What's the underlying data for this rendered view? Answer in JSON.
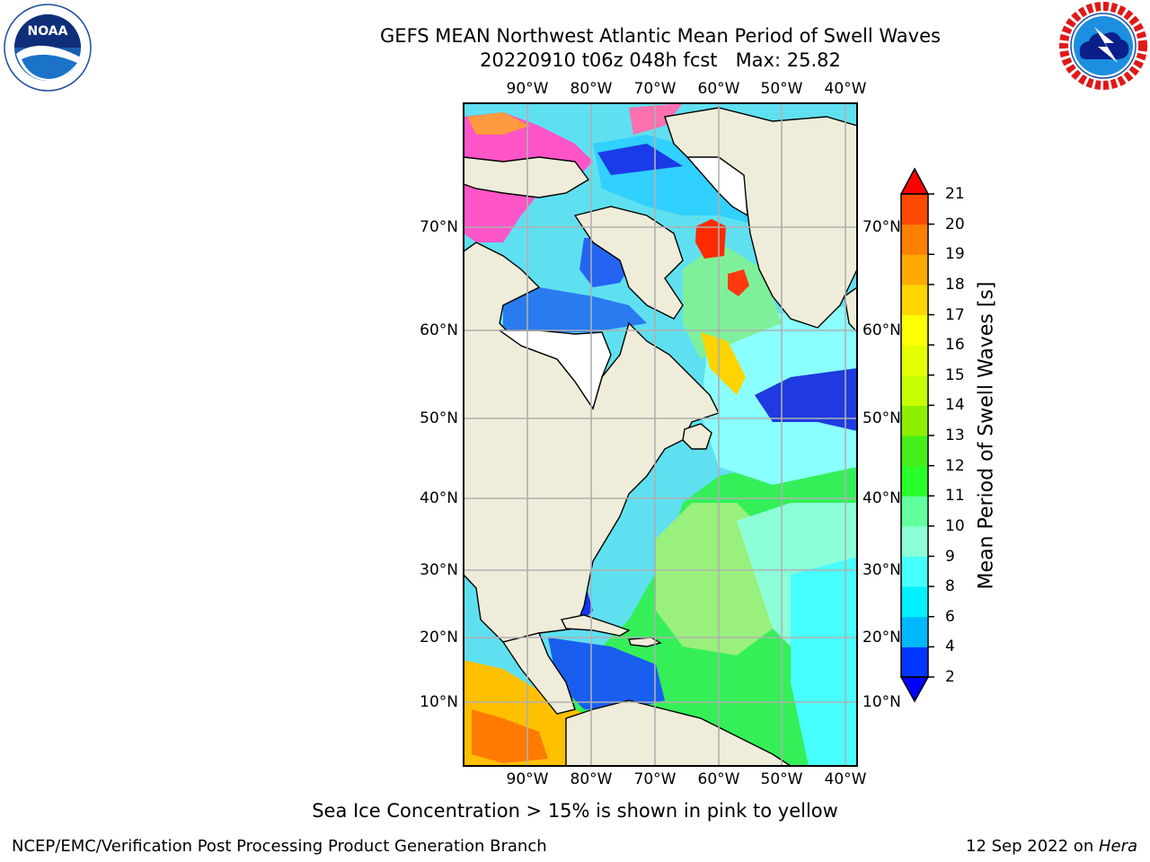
{
  "title": {
    "line1": "GEFS MEAN Northwest Atlantic Mean Period of Swell Waves",
    "line2": "20220910 t06z 048h fcst   Max: 25.82"
  },
  "logos": {
    "left": {
      "icon": "noaa-logo-icon",
      "text": "NOAA",
      "ring_text": "NATIONAL OCEANIC AND ATMOSPHERIC ADMINISTRATION · U.S. DEPARTMENT OF COMMERCE"
    },
    "right": {
      "icon": "nws-logo-icon",
      "ring_text": "NATIONAL WEATHER SERVICE"
    }
  },
  "map": {
    "longitude_labels": [
      "90°W",
      "80°W",
      "70°W",
      "60°W",
      "50°W",
      "40°W"
    ],
    "latitude_labels": [
      "70°N",
      "60°N",
      "50°N",
      "40°N",
      "30°N",
      "20°N",
      "10°N"
    ],
    "land_color": "#efedda",
    "grid_color": "#b0b0b0"
  },
  "colorbar": {
    "label": "Mean Period of Swell Waves [s]",
    "ticks": [
      "2",
      "4",
      "6",
      "8",
      "9",
      "10",
      "11",
      "12",
      "13",
      "14",
      "15",
      "16",
      "17",
      "18",
      "19",
      "20",
      "21"
    ],
    "colors": [
      "#0036ff",
      "#00b8ff",
      "#00f0ff",
      "#47ffff",
      "#8cffd9",
      "#61ff9e",
      "#29ff29",
      "#44ee18",
      "#8ef000",
      "#c8ff00",
      "#e6ff00",
      "#ffff00",
      "#ffd600",
      "#ffaa00",
      "#ff7f00",
      "#ff4a00",
      "#ff1400"
    ],
    "under_color": "#0000ff",
    "over_color": "#ff0000"
  },
  "note": "Sea Ice Concentration > 15% is shown in pink to yellow",
  "footer": {
    "left": "NCEP/EMC/Verification Post Processing Product Generation Branch",
    "right_date": "12 Sep 2022 on ",
    "right_host": "Hera"
  }
}
